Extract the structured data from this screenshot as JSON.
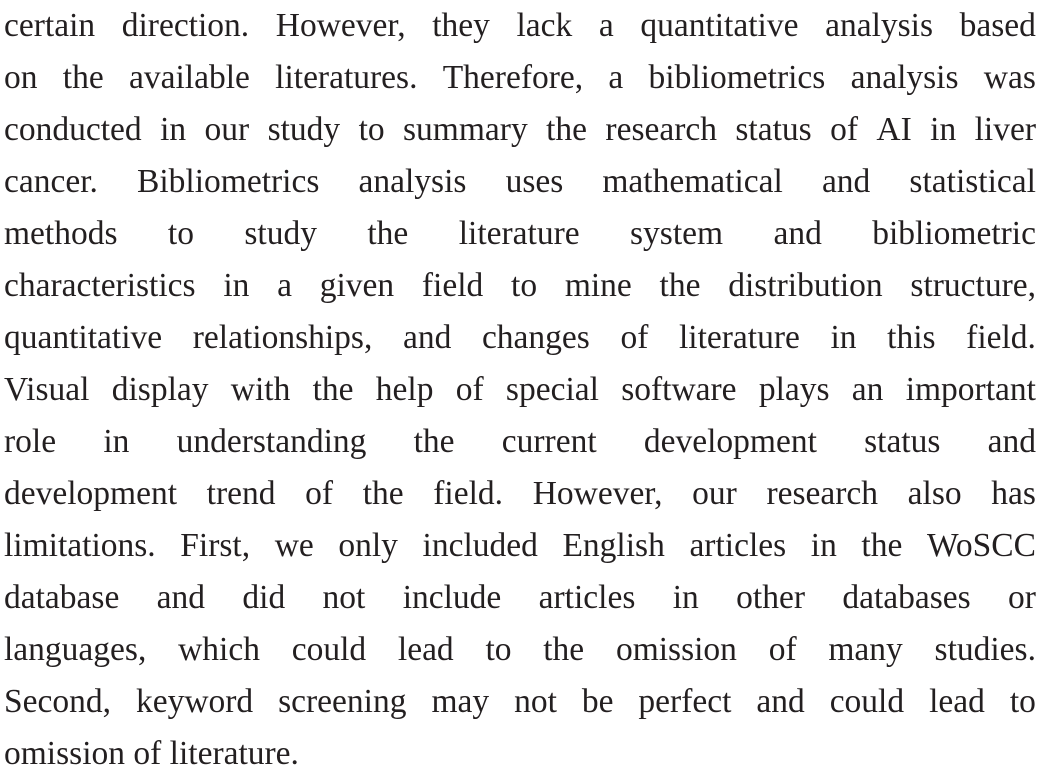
{
  "document": {
    "lines": [
      "certain direction. However, they lack a quantitative analysis based",
      "on the available literatures. Therefore, a bibliometrics analysis was",
      "conducted in our study to summary the research status of AI in liver",
      "cancer. Bibliometrics analysis uses mathematical and statistical",
      "methods to study the literature system and bibliometric",
      "characteristics in a given field to mine the distribution structure,",
      "quantitative relationships, and changes of literature in this field.",
      "Visual display with the help of special software plays an important",
      "role in understanding the current development status and",
      "development trend of the field. However, our research also has",
      "limitations. First, we only included English articles in the WoSCC",
      "database and did not include articles in other databases or",
      "languages, which could lead to the omission of many studies.",
      "Second, keyword screening may not be perfect and could lead to",
      "omission of literature."
    ]
  }
}
